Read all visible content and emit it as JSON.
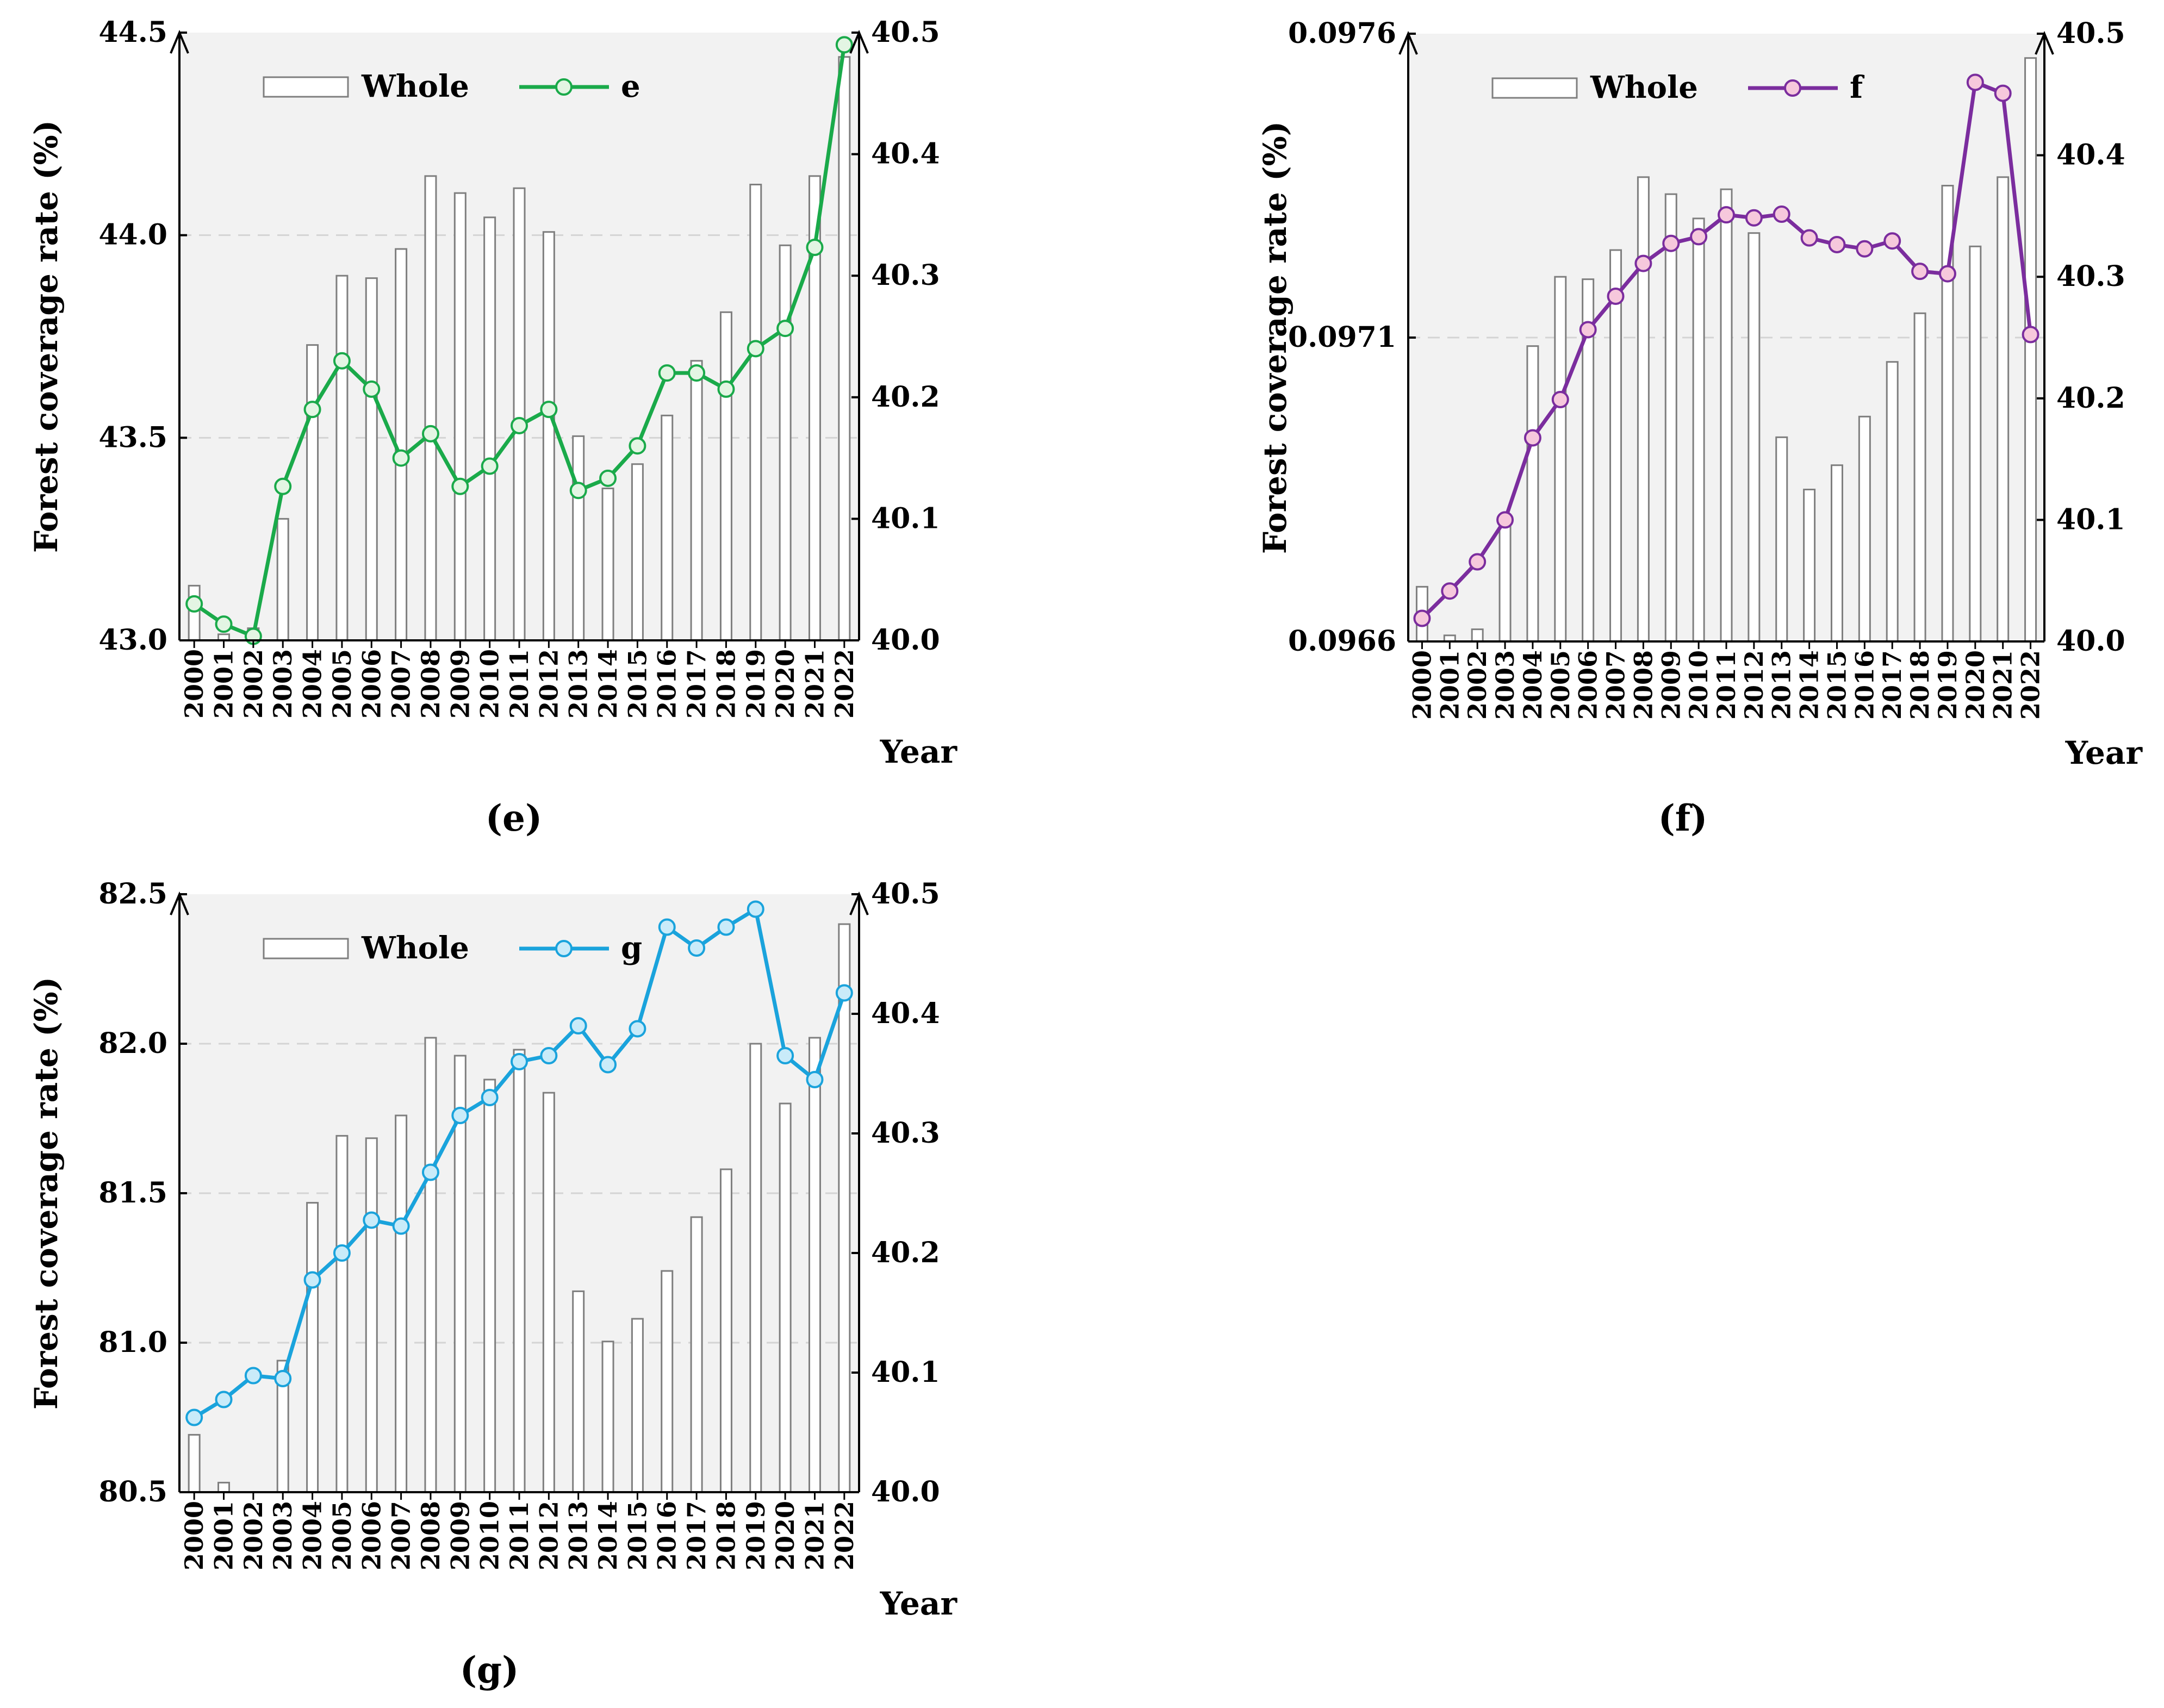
{
  "figure": {
    "years": [
      "2000",
      "2001",
      "2002",
      "2003",
      "2004",
      "2005",
      "2006",
      "2007",
      "2008",
      "2009",
      "2010",
      "2011",
      "2012",
      "2013",
      "2014",
      "2015",
      "2016",
      "2017",
      "2018",
      "2019",
      "2020",
      "2021",
      "2022"
    ]
  },
  "chart_data": [
    {
      "id": "e",
      "type": "bar+line",
      "panel_label": "(e)",
      "left_axis": {
        "label": "Forest coverage rate (%)",
        "ylim": [
          43.0,
          44.5
        ],
        "ticks": [
          "43.0",
          "43.5",
          "44.0",
          "44.5"
        ],
        "tick_values": [
          43.0,
          43.5,
          44.0,
          44.5
        ]
      },
      "right_axis": {
        "ylim": [
          40.0,
          40.5
        ],
        "ticks": [
          "40.0",
          "40.1",
          "40.2",
          "40.3",
          "40.4",
          "40.5"
        ],
        "tick_values": [
          40.0,
          40.1,
          40.2,
          40.3,
          40.4,
          40.5
        ]
      },
      "xlabel": "Year",
      "grid": "dashed at 43.5 and 44.0",
      "legend": {
        "placement": "top-left",
        "bar_label": "Whole",
        "line_label": "e"
      },
      "bar_series": {
        "name": "Whole",
        "axis": "right",
        "values": [
          40.045,
          40.005,
          40.01,
          40.1,
          40.243,
          40.3,
          40.298,
          40.322,
          40.382,
          40.368,
          40.348,
          40.372,
          40.336,
          40.168,
          40.125,
          40.145,
          40.185,
          40.23,
          40.27,
          40.375,
          40.325,
          40.382,
          40.48
        ]
      },
      "line_series": {
        "name": "e",
        "axis": "left",
        "color": "#1aaa4a",
        "marker_fill": "#e3f5e3",
        "values": [
          43.09,
          43.04,
          43.01,
          43.38,
          43.57,
          43.69,
          43.62,
          43.45,
          43.51,
          43.38,
          43.43,
          43.53,
          43.57,
          43.37,
          43.4,
          43.48,
          43.66,
          43.66,
          43.62,
          43.72,
          43.77,
          43.97,
          44.47
        ]
      }
    },
    {
      "id": "f",
      "type": "bar+line",
      "panel_label": "(f)",
      "left_axis": {
        "label": "Forest coverage rate (%)",
        "ylim": [
          0.0966,
          0.0976
        ],
        "ticks": [
          "0.0966",
          "0.0971",
          "0.0976"
        ],
        "tick_values": [
          0.0966,
          0.0971,
          0.0976
        ]
      },
      "right_axis": {
        "ylim": [
          40.0,
          40.5
        ],
        "ticks": [
          "40.0",
          "40.1",
          "40.2",
          "40.3",
          "40.4",
          "40.5"
        ],
        "tick_values": [
          40.0,
          40.1,
          40.2,
          40.3,
          40.4,
          40.5
        ]
      },
      "xlabel": "Year",
      "grid": "dashed at 0.0971",
      "legend": {
        "placement": "top-left",
        "bar_label": "Whole",
        "line_label": "f"
      },
      "bar_series": {
        "name": "Whole",
        "axis": "right",
        "values": [
          40.045,
          40.005,
          40.01,
          40.1,
          40.243,
          40.3,
          40.298,
          40.322,
          40.382,
          40.368,
          40.348,
          40.372,
          40.336,
          40.168,
          40.125,
          40.145,
          40.185,
          40.23,
          40.27,
          40.375,
          40.325,
          40.382,
          40.48
        ]
      },
      "line_series": {
        "name": "f",
        "axis": "left",
        "color": "#7b2d9e",
        "marker_fill": "#f6c8dc",
        "values": [
          0.096638,
          0.096683,
          0.096731,
          0.0968,
          0.096935,
          0.096998,
          0.097113,
          0.097168,
          0.097222,
          0.097255,
          0.097266,
          0.097302,
          0.097297,
          0.097303,
          0.097264,
          0.097253,
          0.097246,
          0.097259,
          0.097209,
          0.097205,
          0.09752,
          0.097502,
          0.097105
        ]
      }
    },
    {
      "id": "g",
      "type": "bar+line",
      "panel_label": "(g)",
      "left_axis": {
        "label": "Forest coverage rate (%)",
        "ylim": [
          80.5,
          82.5
        ],
        "ticks": [
          "80.5",
          "81.0",
          "81.5",
          "82.0",
          "82.5"
        ],
        "tick_values": [
          80.5,
          81.0,
          81.5,
          82.0,
          82.5
        ]
      },
      "right_axis": {
        "ylim": [
          40.0,
          40.5
        ],
        "ticks": [
          "40.0",
          "40.1",
          "40.2",
          "40.3",
          "40.4",
          "40.5"
        ],
        "tick_values": [
          40.0,
          40.1,
          40.2,
          40.3,
          40.4,
          40.5
        ]
      },
      "xlabel": "Year",
      "grid": "dashed at 81.0, 81.5 and 82.0",
      "legend": {
        "placement": "top-left",
        "bar_label": "Whole",
        "line_label": "g"
      },
      "bar_series": {
        "name": "Whole",
        "axis": "right",
        "values": [
          40.048,
          40.008,
          40.0,
          40.11,
          40.242,
          40.298,
          40.296,
          40.315,
          40.38,
          40.365,
          40.345,
          40.37,
          40.334,
          40.168,
          40.126,
          40.145,
          40.185,
          40.23,
          40.27,
          40.375,
          40.325,
          40.38,
          40.475
        ]
      },
      "line_series": {
        "name": "g",
        "axis": "left",
        "color": "#1aa3dc",
        "marker_fill": "#c9ebf9",
        "values": [
          80.75,
          80.81,
          80.89,
          80.88,
          81.21,
          81.3,
          81.41,
          81.39,
          81.57,
          81.76,
          81.82,
          81.94,
          81.96,
          82.06,
          81.93,
          82.05,
          82.39,
          82.32,
          82.39,
          82.45,
          81.96,
          81.88,
          82.17
        ]
      }
    }
  ]
}
